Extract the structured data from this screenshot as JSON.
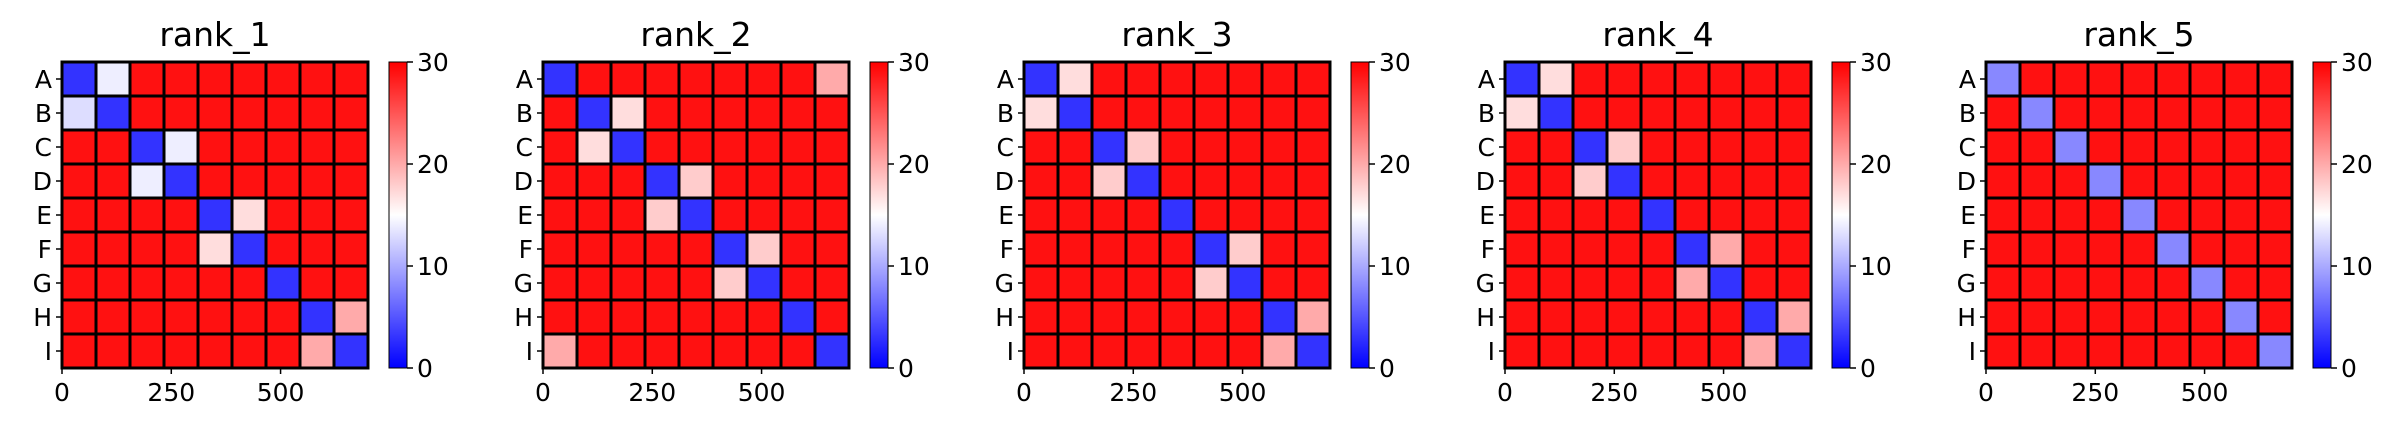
{
  "chart_data": {
    "type": "heatmap",
    "colormap": {
      "name": "bwr",
      "low": "#0000ff",
      "mid": "#ffffff",
      "high": "#ff0000",
      "vmin": 0,
      "vmax": 30
    },
    "colorbar_ticks": [
      0,
      10,
      20,
      30
    ],
    "chains": [
      "A",
      "B",
      "C",
      "D",
      "E",
      "F",
      "G",
      "H",
      "I"
    ],
    "x_ticks": [
      0,
      250,
      500
    ],
    "total_residues": 700,
    "background_value": 29,
    "panels": [
      {
        "title": "rank_1",
        "blocks": [
          {
            "i": 0,
            "j": 0,
            "v": 3
          },
          {
            "i": 1,
            "j": 1,
            "v": 3
          },
          {
            "i": 0,
            "j": 1,
            "v": 14
          },
          {
            "i": 1,
            "j": 0,
            "v": 13
          },
          {
            "i": 2,
            "j": 2,
            "v": 3
          },
          {
            "i": 3,
            "j": 3,
            "v": 3
          },
          {
            "i": 2,
            "j": 3,
            "v": 14
          },
          {
            "i": 3,
            "j": 2,
            "v": 14
          },
          {
            "i": 4,
            "j": 4,
            "v": 3
          },
          {
            "i": 5,
            "j": 5,
            "v": 3
          },
          {
            "i": 4,
            "j": 5,
            "v": 17
          },
          {
            "i": 5,
            "j": 4,
            "v": 17
          },
          {
            "i": 6,
            "j": 6,
            "v": 3
          },
          {
            "i": 7,
            "j": 7,
            "v": 3
          },
          {
            "i": 8,
            "j": 8,
            "v": 3
          },
          {
            "i": 7,
            "j": 8,
            "v": 20
          },
          {
            "i": 8,
            "j": 7,
            "v": 20
          }
        ]
      },
      {
        "title": "rank_2",
        "blocks": [
          {
            "i": 0,
            "j": 0,
            "v": 3
          },
          {
            "i": 8,
            "j": 8,
            "v": 3
          },
          {
            "i": 0,
            "j": 8,
            "v": 20
          },
          {
            "i": 8,
            "j": 0,
            "v": 20
          },
          {
            "i": 1,
            "j": 1,
            "v": 3
          },
          {
            "i": 2,
            "j": 2,
            "v": 3
          },
          {
            "i": 1,
            "j": 2,
            "v": 17
          },
          {
            "i": 2,
            "j": 1,
            "v": 17
          },
          {
            "i": 3,
            "j": 3,
            "v": 3
          },
          {
            "i": 4,
            "j": 4,
            "v": 3
          },
          {
            "i": 3,
            "j": 4,
            "v": 18
          },
          {
            "i": 4,
            "j": 3,
            "v": 18
          },
          {
            "i": 5,
            "j": 5,
            "v": 3
          },
          {
            "i": 6,
            "j": 6,
            "v": 3
          },
          {
            "i": 5,
            "j": 6,
            "v": 18
          },
          {
            "i": 6,
            "j": 5,
            "v": 18
          },
          {
            "i": 7,
            "j": 7,
            "v": 3
          }
        ]
      },
      {
        "title": "rank_3",
        "blocks": [
          {
            "i": 0,
            "j": 0,
            "v": 3
          },
          {
            "i": 1,
            "j": 1,
            "v": 3
          },
          {
            "i": 0,
            "j": 1,
            "v": 17
          },
          {
            "i": 1,
            "j": 0,
            "v": 17
          },
          {
            "i": 2,
            "j": 2,
            "v": 3
          },
          {
            "i": 3,
            "j": 3,
            "v": 3
          },
          {
            "i": 2,
            "j": 3,
            "v": 18
          },
          {
            "i": 3,
            "j": 2,
            "v": 18
          },
          {
            "i": 4,
            "j": 4,
            "v": 3
          },
          {
            "i": 5,
            "j": 5,
            "v": 3
          },
          {
            "i": 6,
            "j": 6,
            "v": 3
          },
          {
            "i": 5,
            "j": 6,
            "v": 18
          },
          {
            "i": 6,
            "j": 5,
            "v": 18
          },
          {
            "i": 7,
            "j": 7,
            "v": 3
          },
          {
            "i": 8,
            "j": 8,
            "v": 3
          },
          {
            "i": 7,
            "j": 8,
            "v": 20
          },
          {
            "i": 8,
            "j": 7,
            "v": 20
          }
        ]
      },
      {
        "title": "rank_4",
        "blocks": [
          {
            "i": 0,
            "j": 0,
            "v": 3
          },
          {
            "i": 1,
            "j": 1,
            "v": 3
          },
          {
            "i": 0,
            "j": 1,
            "v": 17
          },
          {
            "i": 1,
            "j": 0,
            "v": 17
          },
          {
            "i": 2,
            "j": 2,
            "v": 3
          },
          {
            "i": 3,
            "j": 3,
            "v": 3
          },
          {
            "i": 2,
            "j": 3,
            "v": 18
          },
          {
            "i": 3,
            "j": 2,
            "v": 18
          },
          {
            "i": 4,
            "j": 4,
            "v": 3
          },
          {
            "i": 5,
            "j": 5,
            "v": 3
          },
          {
            "i": 6,
            "j": 6,
            "v": 3
          },
          {
            "i": 5,
            "j": 6,
            "v": 20
          },
          {
            "i": 6,
            "j": 5,
            "v": 20
          },
          {
            "i": 7,
            "j": 7,
            "v": 3
          },
          {
            "i": 8,
            "j": 8,
            "v": 3
          },
          {
            "i": 7,
            "j": 8,
            "v": 20
          },
          {
            "i": 8,
            "j": 7,
            "v": 20
          }
        ]
      },
      {
        "title": "rank_5",
        "blocks": [
          {
            "i": 0,
            "j": 0,
            "v": 8
          },
          {
            "i": 1,
            "j": 1,
            "v": 8
          },
          {
            "i": 2,
            "j": 2,
            "v": 8
          },
          {
            "i": 3,
            "j": 3,
            "v": 8
          },
          {
            "i": 4,
            "j": 4,
            "v": 8
          },
          {
            "i": 5,
            "j": 5,
            "v": 8
          },
          {
            "i": 6,
            "j": 6,
            "v": 8
          },
          {
            "i": 7,
            "j": 7,
            "v": 8
          },
          {
            "i": 8,
            "j": 8,
            "v": 8
          }
        ]
      }
    ]
  }
}
